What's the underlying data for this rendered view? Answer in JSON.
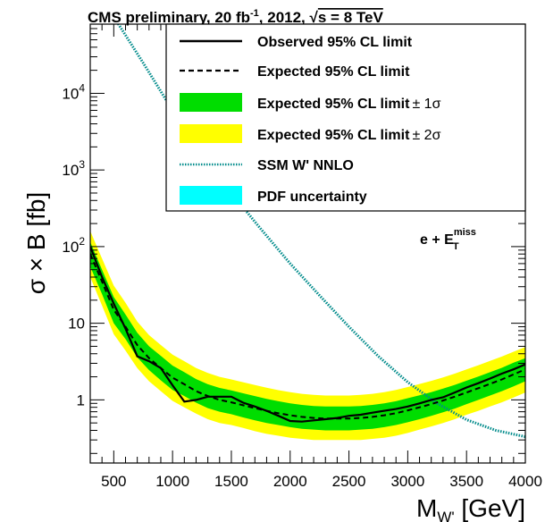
{
  "chart_data": {
    "type": "line",
    "title": {
      "prefix": "CMS preliminary,  20 fb",
      "lumi_sup": "-1",
      "mid": ",  2012,  ",
      "sqrt": "√",
      "energy": "s = 8 TeV"
    },
    "ylabel": "σ × B [fb]",
    "xlabel": {
      "main": "M",
      "sub": "W'",
      "unit": " [GeV]"
    },
    "yscale": "log",
    "xlim": [
      300,
      4000
    ],
    "ylim": [
      0.15,
      80000
    ],
    "xticks": [
      500,
      1000,
      1500,
      2000,
      2500,
      3000,
      3500,
      4000
    ],
    "xtick_labels": [
      "500",
      "1000",
      "1500",
      "2000",
      "2500",
      "3000",
      "3500",
      "4000"
    ],
    "yticks": [
      {
        "value": 1,
        "label": "1"
      },
      {
        "value": 10,
        "label": "10"
      },
      {
        "value": 100,
        "base": "10",
        "exp": "2"
      },
      {
        "value": 1000,
        "base": "10",
        "exp": "3"
      },
      {
        "value": 10000,
        "base": "10",
        "exp": "4"
      }
    ],
    "channel_label": {
      "main": "e + E",
      "sup": "miss",
      "sub": "T"
    },
    "legend_position": "top-right",
    "legend": [
      {
        "key": "observed",
        "label": "Observed 95% CL limit"
      },
      {
        "key": "expected",
        "label": "Expected 95% CL limit"
      },
      {
        "key": "band1",
        "label": "Expected 95% CL limit",
        "suffix": "± 1σ"
      },
      {
        "key": "band2",
        "label": "Expected 95% CL limit",
        "suffix": "± 2σ"
      },
      {
        "key": "theory",
        "label": "SSM W' NNLO"
      },
      {
        "key": "pdf",
        "label": "PDF uncertainty"
      }
    ],
    "colors": {
      "band1": "#00dd00",
      "band2": "#ffff00",
      "observed": "#000000",
      "expected": "#000000",
      "theory": "#008b8b",
      "pdf": "#00ffff"
    },
    "series": [
      {
        "key": "observed",
        "name": "Observed 95% CL limit",
        "x": [
          300,
          400,
          500,
          600,
          700,
          800,
          900,
          1000,
          1100,
          1200,
          1300,
          1400,
          1500,
          1600,
          1700,
          1800,
          1900,
          2000,
          2100,
          2200,
          2300,
          2400,
          2500,
          2600,
          2700,
          2800,
          2900,
          3000,
          3100,
          3200,
          3300,
          3400,
          3500,
          3600,
          3700,
          3800,
          3900,
          4000
        ],
        "y": [
          100,
          40,
          18,
          8.5,
          3.7,
          3.2,
          2.6,
          1.55,
          0.95,
          1.0,
          1.1,
          1.1,
          1.1,
          0.92,
          0.82,
          0.72,
          0.62,
          0.53,
          0.52,
          0.54,
          0.56,
          0.58,
          0.62,
          0.64,
          0.68,
          0.72,
          0.76,
          0.82,
          0.9,
          1.0,
          1.08,
          1.25,
          1.45,
          1.65,
          1.9,
          2.2,
          2.5,
          2.9
        ]
      },
      {
        "key": "expected",
        "name": "Expected 95% CL limit",
        "x": [
          300,
          400,
          500,
          600,
          700,
          800,
          900,
          1000,
          1100,
          1200,
          1300,
          1400,
          1500,
          1600,
          1700,
          1800,
          1900,
          2000,
          2100,
          2200,
          2300,
          2400,
          2500,
          2600,
          2700,
          2800,
          2900,
          3000,
          3100,
          3200,
          3300,
          3400,
          3500,
          3600,
          3700,
          3800,
          3900,
          4000
        ],
        "y": [
          80,
          35,
          15,
          9,
          5.2,
          3.5,
          2.6,
          1.95,
          1.6,
          1.3,
          1.12,
          1.0,
          0.93,
          0.85,
          0.78,
          0.72,
          0.67,
          0.63,
          0.6,
          0.58,
          0.57,
          0.57,
          0.57,
          0.58,
          0.6,
          0.63,
          0.67,
          0.73,
          0.8,
          0.88,
          0.98,
          1.1,
          1.25,
          1.42,
          1.62,
          1.85,
          2.15,
          2.5
        ]
      },
      {
        "key": "band1",
        "name": "Expected 95% CL limit ± 1σ",
        "x": [
          300,
          400,
          500,
          600,
          700,
          800,
          900,
          1000,
          1100,
          1200,
          1300,
          1400,
          1500,
          1600,
          1700,
          1800,
          1900,
          2000,
          2100,
          2200,
          2300,
          2400,
          2500,
          2600,
          2700,
          2800,
          2900,
          3000,
          3100,
          3200,
          3300,
          3400,
          3500,
          3600,
          3700,
          3800,
          3900,
          4000
        ],
        "low": [
          55,
          24,
          10,
          6.2,
          3.6,
          2.45,
          1.8,
          1.35,
          1.12,
          0.92,
          0.78,
          0.7,
          0.65,
          0.59,
          0.54,
          0.5,
          0.47,
          0.44,
          0.42,
          0.41,
          0.4,
          0.4,
          0.4,
          0.41,
          0.42,
          0.44,
          0.47,
          0.51,
          0.56,
          0.62,
          0.69,
          0.77,
          0.88,
          1.0,
          1.14,
          1.3,
          1.5,
          1.75
        ],
        "high": [
          115,
          50,
          22,
          13,
          7.5,
          5.0,
          3.75,
          2.8,
          2.3,
          1.87,
          1.6,
          1.43,
          1.33,
          1.22,
          1.12,
          1.03,
          0.96,
          0.9,
          0.86,
          0.83,
          0.82,
          0.82,
          0.82,
          0.83,
          0.86,
          0.9,
          0.96,
          1.05,
          1.15,
          1.26,
          1.4,
          1.57,
          1.78,
          2.02,
          2.3,
          2.62,
          3.05,
          3.5
        ]
      },
      {
        "key": "band2",
        "name": "Expected 95% CL limit ± 2σ",
        "x": [
          300,
          400,
          500,
          600,
          700,
          800,
          900,
          1000,
          1100,
          1200,
          1300,
          1400,
          1500,
          1600,
          1700,
          1800,
          1900,
          2000,
          2100,
          2200,
          2300,
          2400,
          2500,
          2600,
          2700,
          2800,
          2900,
          3000,
          3100,
          3200,
          3300,
          3400,
          3500,
          3600,
          3700,
          3800,
          3900,
          4000
        ],
        "low": [
          40,
          17,
          7.2,
          4.4,
          2.6,
          1.75,
          1.3,
          0.97,
          0.8,
          0.66,
          0.56,
          0.5,
          0.47,
          0.43,
          0.39,
          0.36,
          0.34,
          0.32,
          0.31,
          0.3,
          0.3,
          0.3,
          0.3,
          0.3,
          0.31,
          0.32,
          0.34,
          0.37,
          0.41,
          0.45,
          0.5,
          0.56,
          0.64,
          0.72,
          0.82,
          0.93,
          1.07,
          1.25
        ],
        "high": [
          160,
          70,
          31,
          18.5,
          10.5,
          7.0,
          5.2,
          3.9,
          3.2,
          2.6,
          2.25,
          2.0,
          1.85,
          1.7,
          1.56,
          1.44,
          1.34,
          1.26,
          1.2,
          1.16,
          1.14,
          1.14,
          1.14,
          1.16,
          1.2,
          1.26,
          1.35,
          1.47,
          1.61,
          1.77,
          1.96,
          2.2,
          2.5,
          2.83,
          3.22,
          3.68,
          4.25,
          4.9
        ]
      },
      {
        "key": "theory",
        "name": "SSM W' NNLO",
        "x": [
          300,
          500,
          750,
          1000,
          1250,
          1500,
          1750,
          2000,
          2250,
          2500,
          2750,
          3000,
          3250,
          3500,
          3750,
          4000
        ],
        "y": [
          1000000.0,
          100000,
          25000,
          6000,
          1600,
          500,
          170,
          60,
          23,
          9,
          3.7,
          1.7,
          0.9,
          0.55,
          0.4,
          0.33
        ]
      }
    ]
  }
}
